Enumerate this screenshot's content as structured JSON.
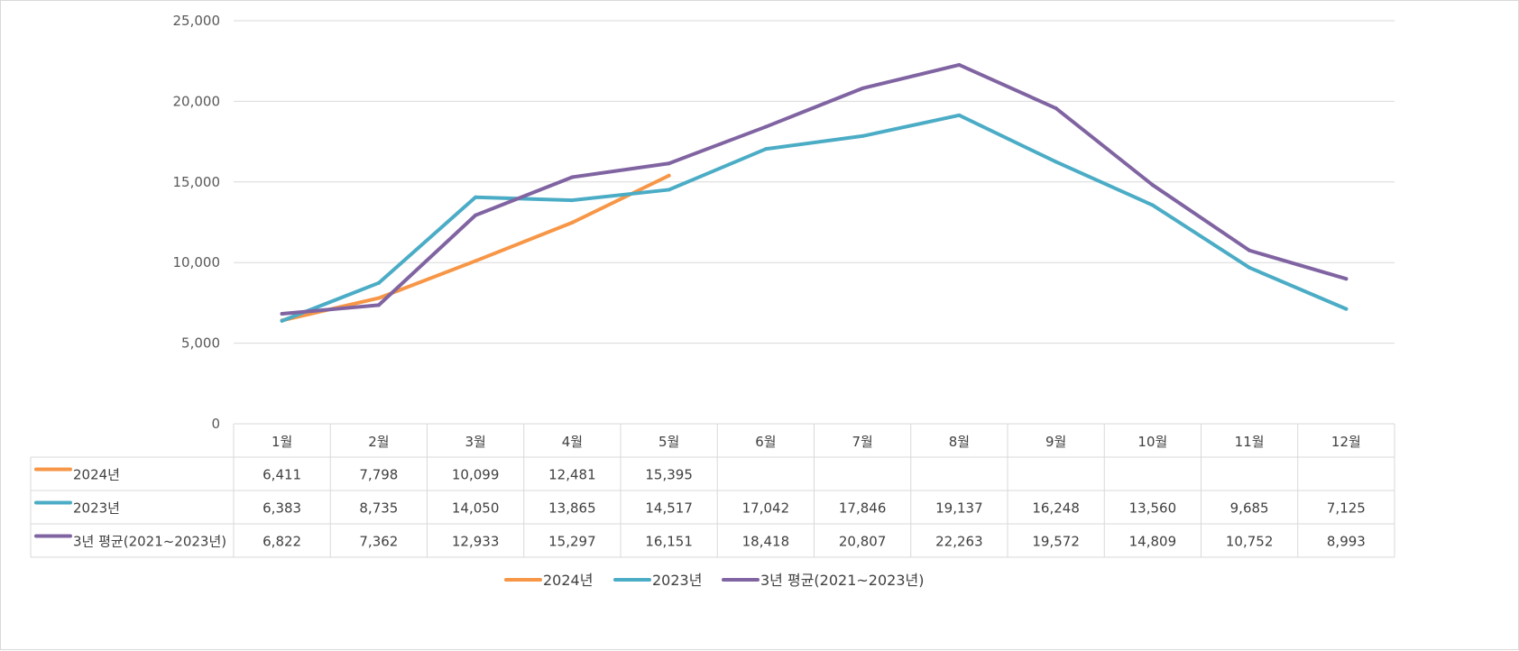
{
  "chart_data": {
    "type": "line",
    "title": "",
    "xlabel": "",
    "ylabel": "",
    "ylim": [
      0,
      25000
    ],
    "yticks": [
      "0",
      "5,000",
      "10,000",
      "15,000",
      "20,000",
      "25,000"
    ],
    "categories": [
      "1월",
      "2월",
      "3월",
      "4월",
      "5월",
      "6월",
      "7월",
      "8월",
      "9월",
      "10월",
      "11월",
      "12월"
    ],
    "series": [
      {
        "name": "2024년",
        "color": "#f79646",
        "values": [
          6411,
          7798,
          10099,
          12481,
          15395,
          null,
          null,
          null,
          null,
          null,
          null,
          null
        ],
        "labels": [
          "6,411",
          "7,798",
          "10,099",
          "12,481",
          "15,395",
          "",
          "",
          "",
          "",
          "",
          "",
          ""
        ]
      },
      {
        "name": "2023년",
        "color": "#4bacc6",
        "values": [
          6383,
          8735,
          14050,
          13865,
          14517,
          17042,
          17846,
          19137,
          16248,
          13560,
          9685,
          7125
        ],
        "labels": [
          "6,383",
          "8,735",
          "14,050",
          "13,865",
          "14,517",
          "17,042",
          "17,846",
          "19,137",
          "16,248",
          "13,560",
          "9,685",
          "7,125"
        ]
      },
      {
        "name": "3년 평균(2021~2023년)",
        "color": "#8064a2",
        "values": [
          6822,
          7362,
          12933,
          15297,
          16151,
          18418,
          20807,
          22263,
          19572,
          14809,
          10752,
          8993
        ],
        "labels": [
          "6,822",
          "7,362",
          "12,933",
          "15,297",
          "16,151",
          "18,418",
          "20,807",
          "22,263",
          "19,572",
          "14,809",
          "10,752",
          "8,993"
        ]
      }
    ],
    "grid": true,
    "legend": "bottom",
    "data_table": true
  }
}
